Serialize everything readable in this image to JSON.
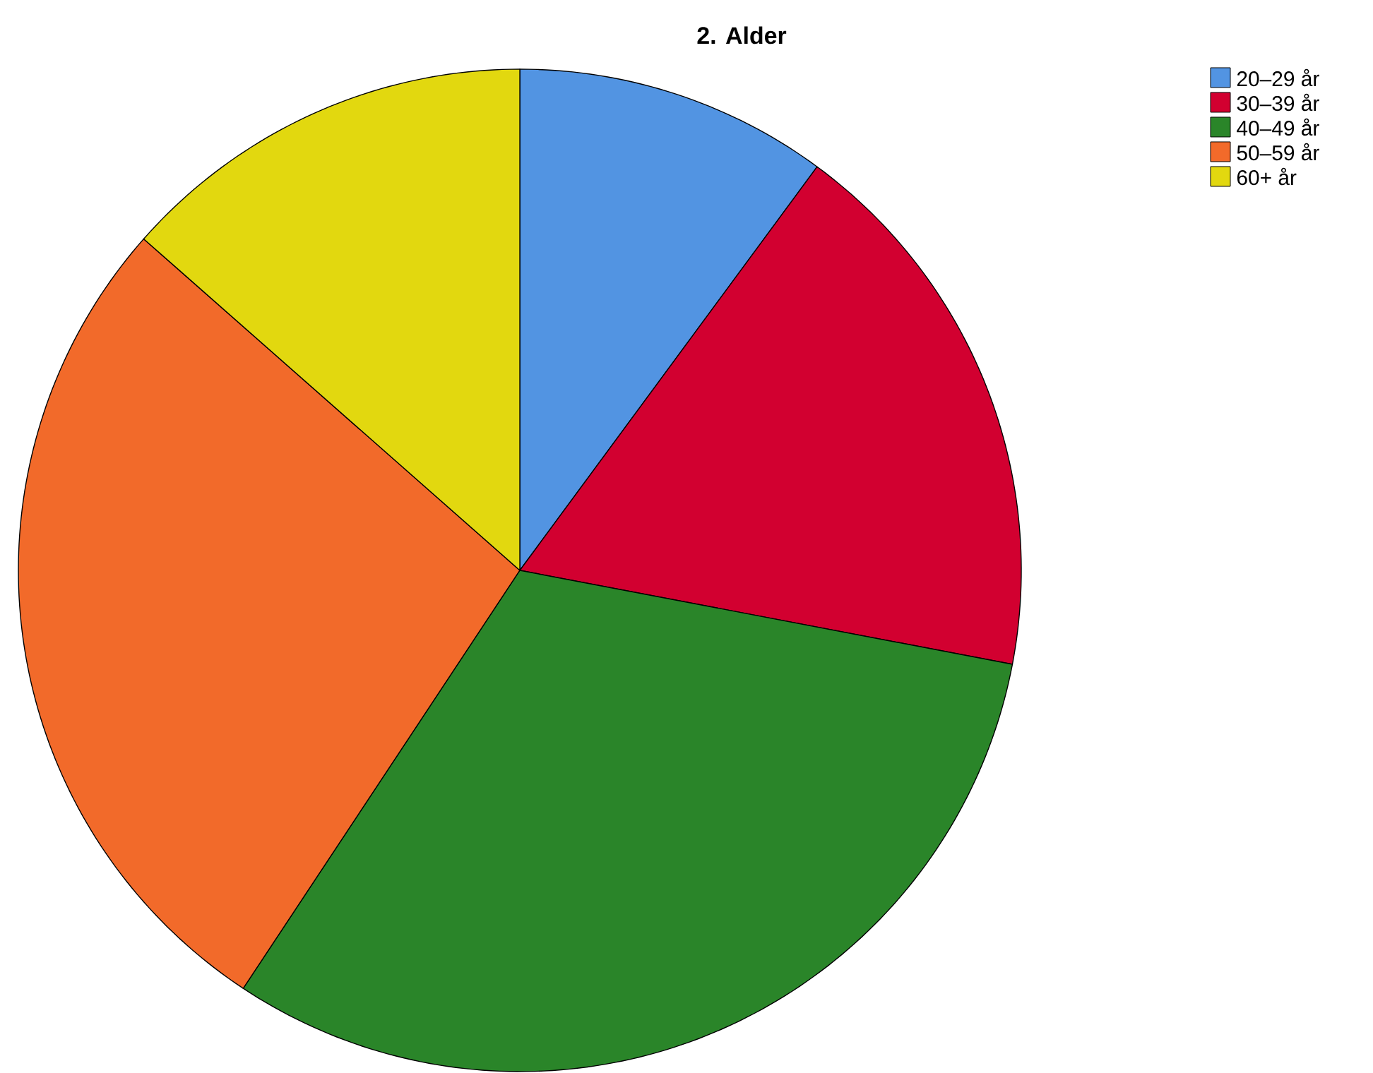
{
  "chart_data": {
    "type": "pie",
    "title": "2. Alder",
    "categories": [
      "20–29 år",
      "30–39 år",
      "40–49 år",
      "50–59 år",
      "60+ år"
    ],
    "values": [
      10.1,
      17.9,
      31.3,
      27.2,
      13.5
    ],
    "colors": [
      "#5294e2",
      "#d20030",
      "#2a8529",
      "#f26a2a",
      "#e2d80f"
    ],
    "legend": "top right"
  }
}
